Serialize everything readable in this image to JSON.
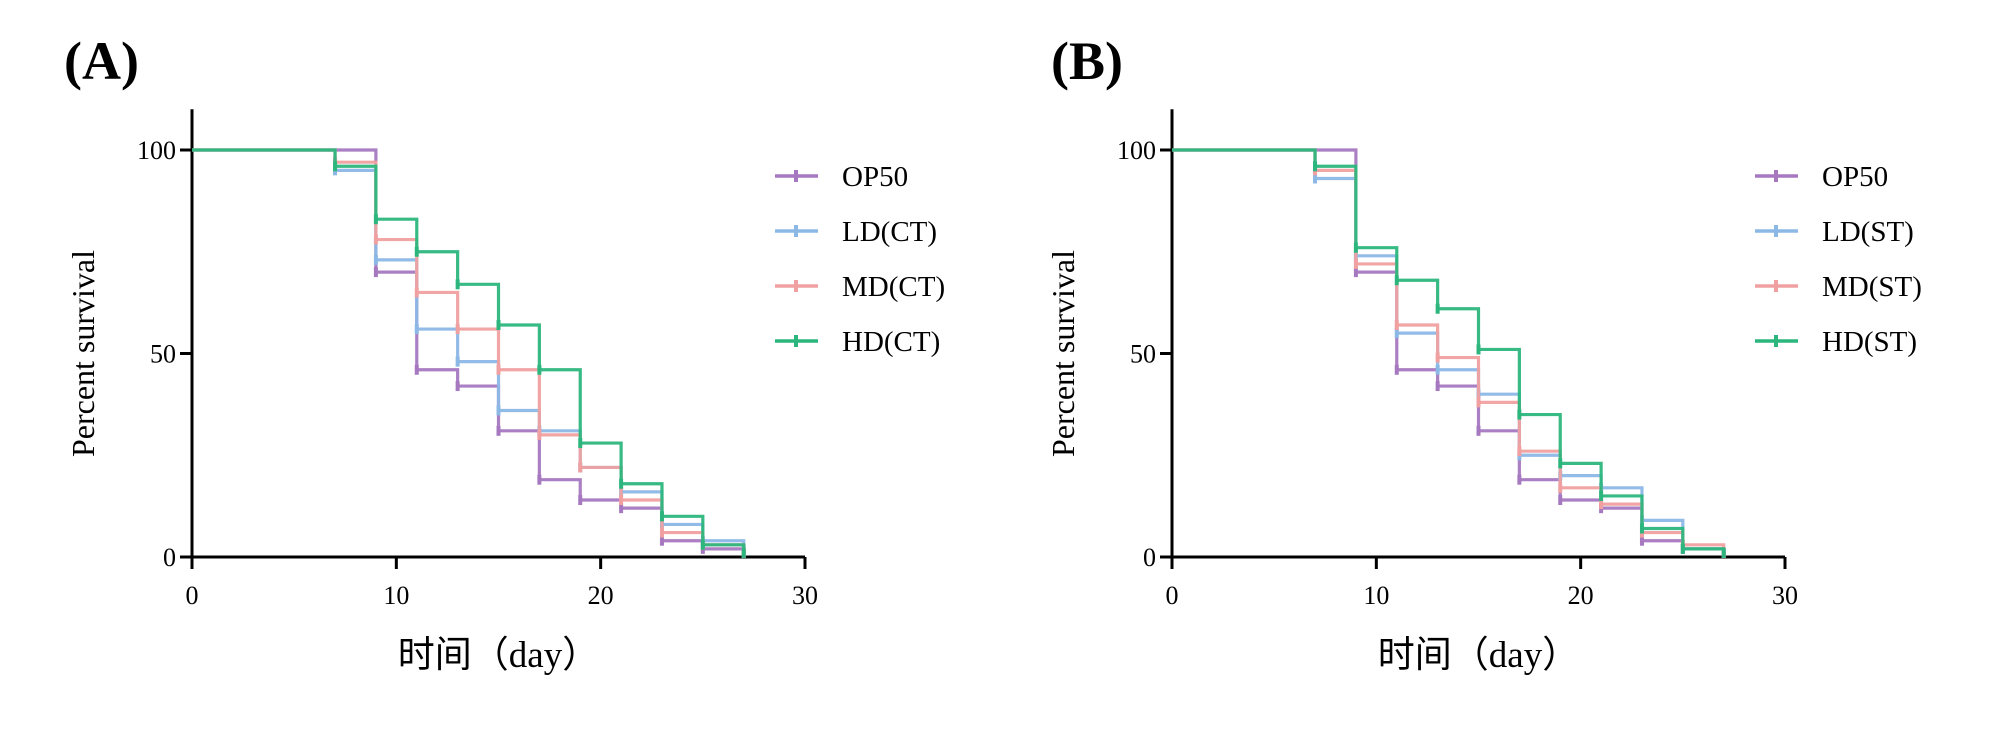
{
  "chart_data": [
    {
      "panel": "(A)",
      "type": "line",
      "step": true,
      "title": "",
      "xlabel": "时间（day）",
      "ylabel": "Percent survival",
      "xlim": [
        0,
        30
      ],
      "ylim": [
        0,
        110
      ],
      "xticks": [
        "0",
        "10",
        "20",
        "30"
      ],
      "yticks": [
        "0",
        "50",
        "100"
      ],
      "series": [
        {
          "name": "OP50",
          "color": "#a678c0",
          "x": [
            0,
            9,
            11,
            13,
            15,
            17,
            19,
            21,
            23,
            25,
            27
          ],
          "y": [
            100,
            70,
            46,
            42,
            31,
            19,
            14,
            12,
            4,
            2,
            1
          ]
        },
        {
          "name": "LD(CT)",
          "color": "#8cb8e6",
          "x": [
            0,
            7,
            9,
            11,
            13,
            15,
            17,
            19,
            21,
            23,
            25,
            27
          ],
          "y": [
            100,
            95,
            73,
            56,
            48,
            36,
            31,
            22,
            16,
            8,
            4,
            2
          ]
        },
        {
          "name": "MD(CT)",
          "color": "#f0a0a0",
          "x": [
            0,
            7,
            9,
            11,
            13,
            15,
            17,
            19,
            21,
            23,
            25,
            27
          ],
          "y": [
            100,
            97,
            78,
            65,
            56,
            46,
            30,
            22,
            14,
            6,
            3,
            1
          ]
        },
        {
          "name": "HD(CT)",
          "color": "#2cb67d",
          "x": [
            0,
            7,
            9,
            11,
            13,
            15,
            17,
            19,
            21,
            23,
            25,
            27
          ],
          "y": [
            100,
            96,
            83,
            75,
            67,
            57,
            46,
            28,
            18,
            10,
            3,
            1
          ]
        }
      ]
    },
    {
      "panel": "(B)",
      "type": "line",
      "step": true,
      "title": "",
      "xlabel": "时间（day）",
      "ylabel": "Percent survival",
      "xlim": [
        0,
        30
      ],
      "ylim": [
        0,
        110
      ],
      "xticks": [
        "0",
        "10",
        "20",
        "30"
      ],
      "yticks": [
        "0",
        "50",
        "100"
      ],
      "series": [
        {
          "name": "OP50",
          "color": "#a678c0",
          "x": [
            0,
            9,
            11,
            13,
            15,
            17,
            19,
            21,
            23,
            25,
            27
          ],
          "y": [
            100,
            70,
            46,
            42,
            31,
            19,
            14,
            12,
            4,
            2,
            1
          ]
        },
        {
          "name": "LD(ST)",
          "color": "#8cb8e6",
          "x": [
            0,
            7,
            9,
            11,
            13,
            15,
            17,
            19,
            21,
            23,
            25,
            27
          ],
          "y": [
            100,
            93,
            74,
            55,
            46,
            40,
            25,
            20,
            17,
            9,
            2,
            1
          ]
        },
        {
          "name": "MD(ST)",
          "color": "#f0a0a0",
          "x": [
            0,
            7,
            9,
            11,
            13,
            15,
            17,
            19,
            21,
            23,
            25,
            27
          ],
          "y": [
            100,
            95,
            72,
            57,
            49,
            38,
            26,
            17,
            13,
            6,
            3,
            1
          ]
        },
        {
          "name": "HD(ST)",
          "color": "#2cb67d",
          "x": [
            0,
            7,
            9,
            11,
            13,
            15,
            17,
            19,
            21,
            23,
            25,
            27
          ],
          "y": [
            100,
            96,
            76,
            68,
            61,
            51,
            35,
            23,
            15,
            7,
            2,
            1
          ]
        }
      ]
    }
  ]
}
